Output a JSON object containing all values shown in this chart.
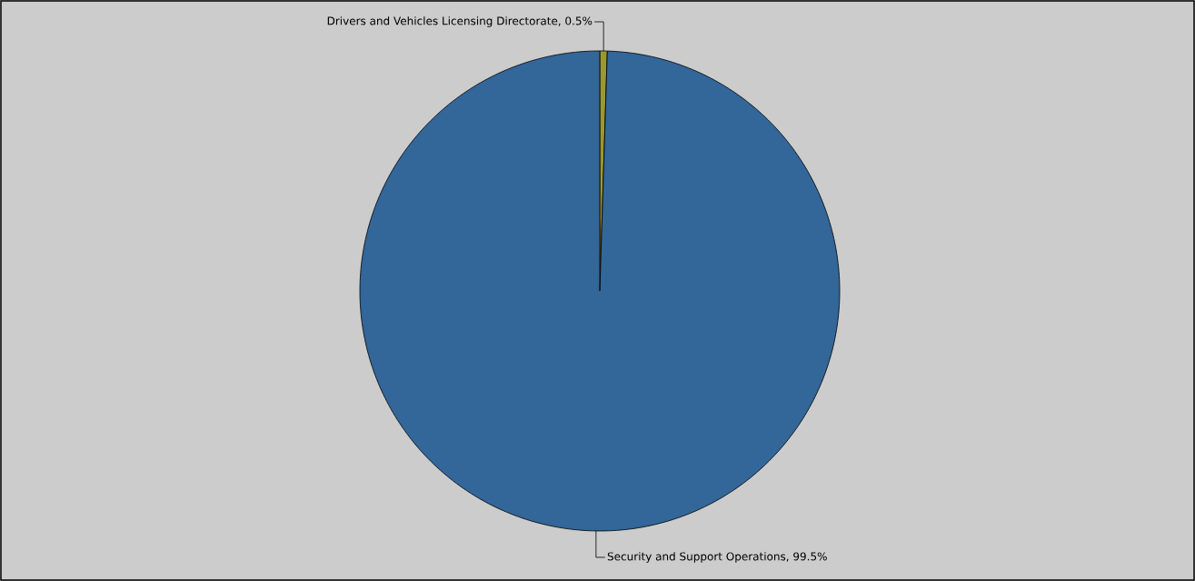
{
  "chart_data": {
    "type": "pie",
    "categories": [
      "Drivers and Vehicles Licensing Directorate",
      "Security and Support Operations"
    ],
    "values": [
      0.5,
      99.5
    ],
    "colors": [
      "#999933",
      "#336699"
    ],
    "value_labels": [
      ", 0.5%",
      ", 99.5%"
    ]
  }
}
